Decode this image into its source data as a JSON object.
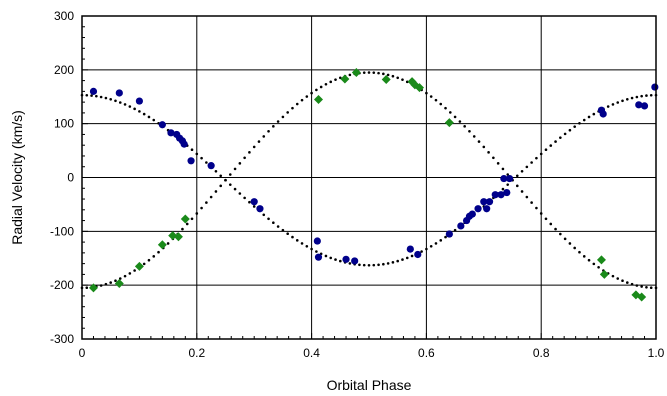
{
  "chart_data": {
    "type": "scatter",
    "xlabel": "Orbital Phase",
    "ylabel": "Radial Velocity (km/s)",
    "xlim": [
      0,
      1
    ],
    "ylim": [
      -300,
      300
    ],
    "x_ticks": [
      0,
      0.2,
      0.4,
      0.6,
      0.8,
      1.0
    ],
    "x_tick_labels": [
      "0",
      "0.2",
      "0.4",
      "0.6",
      "0.8",
      "1.0"
    ],
    "y_ticks": [
      -300,
      -200,
      -100,
      0,
      100,
      200,
      300
    ],
    "y_tick_labels": [
      "-300",
      "-200",
      "-100",
      "0",
      "100",
      "200",
      "300"
    ],
    "grid": true,
    "colors": {
      "series1": "#00008b",
      "series2": "#1a8a1a",
      "fit": "#000000"
    },
    "series": [
      {
        "marker": "circle",
        "color": "#00008b",
        "x": [
          0.02,
          0.065,
          0.1,
          0.14,
          0.155,
          0.165,
          0.17,
          0.175,
          0.178,
          0.19,
          0.225,
          0.3,
          0.31,
          0.41,
          0.412,
          0.46,
          0.475,
          0.572,
          0.585,
          0.64,
          0.66,
          0.67,
          0.675,
          0.68,
          0.69,
          0.7,
          0.705,
          0.71,
          0.72,
          0.73,
          0.735,
          0.74,
          0.745,
          0.905,
          0.908,
          0.97,
          0.98,
          0.998
        ],
        "y": [
          160,
          157,
          142,
          98,
          83,
          80,
          73,
          68,
          62,
          31,
          22,
          -45,
          -58,
          -118,
          -148,
          -152,
          -155,
          -133,
          -143,
          -105,
          -90,
          -80,
          -72,
          -68,
          -58,
          -45,
          -58,
          -45,
          -32,
          -32,
          -2,
          -28,
          -2,
          125,
          118,
          135,
          133,
          168
        ]
      },
      {
        "marker": "diamond",
        "color": "#1a8a1a",
        "x": [
          0.02,
          0.065,
          0.1,
          0.14,
          0.158,
          0.168,
          0.18,
          0.412,
          0.458,
          0.478,
          0.53,
          0.575,
          0.58,
          0.588,
          0.64,
          0.905,
          0.91,
          0.965,
          0.975
        ],
        "y": [
          -205,
          -197,
          -165,
          -125,
          -108,
          -110,
          -77,
          145,
          183,
          195,
          182,
          178,
          172,
          167,
          102,
          -153,
          -180,
          -218,
          -222
        ]
      }
    ],
    "fits": [
      {
        "style": "dotted",
        "gamma": -5,
        "amplitude": 158,
        "phase_max": 0.0
      },
      {
        "style": "dotted",
        "gamma": -5,
        "amplitude": 200,
        "phase_max": 0.5
      }
    ]
  }
}
